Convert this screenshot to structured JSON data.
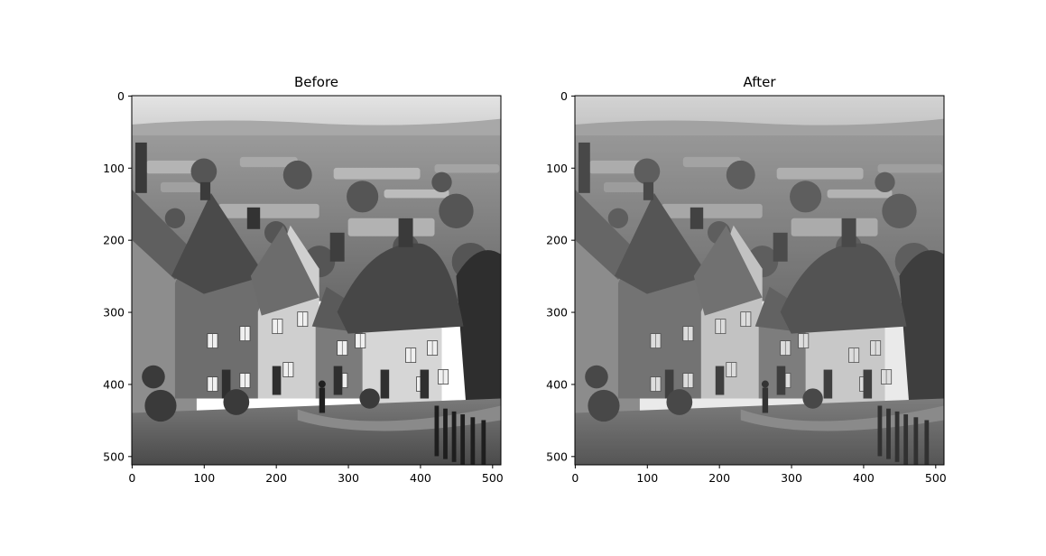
{
  "chart_data": [
    {
      "type": "image",
      "title": "Before",
      "colormap": "gray",
      "xlim": [
        0,
        511
      ],
      "ylim": [
        511,
        0
      ],
      "xticks": [
        0,
        100,
        200,
        300,
        400,
        500
      ],
      "yticks": [
        0,
        100,
        200,
        300,
        400,
        500
      ],
      "xtick_labels": [
        "0",
        "100",
        "200",
        "300",
        "400",
        "500"
      ],
      "ytick_labels": [
        "0",
        "100",
        "200",
        "300",
        "400",
        "500"
      ],
      "content": "grayscale photo of a steep village street with thatched cottages and countryside"
    },
    {
      "type": "image",
      "title": "After",
      "colormap": "gray",
      "xlim": [
        0,
        511
      ],
      "ylim": [
        511,
        0
      ],
      "xticks": [
        0,
        100,
        200,
        300,
        400,
        500
      ],
      "yticks": [
        0,
        100,
        200,
        300,
        400,
        500
      ],
      "xtick_labels": [
        "0",
        "100",
        "200",
        "300",
        "400",
        "500"
      ],
      "ytick_labels": [
        "0",
        "100",
        "200",
        "300",
        "400",
        "500"
      ],
      "content": "same grayscale photo, slightly lower contrast"
    }
  ],
  "colors": {
    "background": "#ffffff",
    "axis": "#000000",
    "sky": "#d8d8d8"
  }
}
